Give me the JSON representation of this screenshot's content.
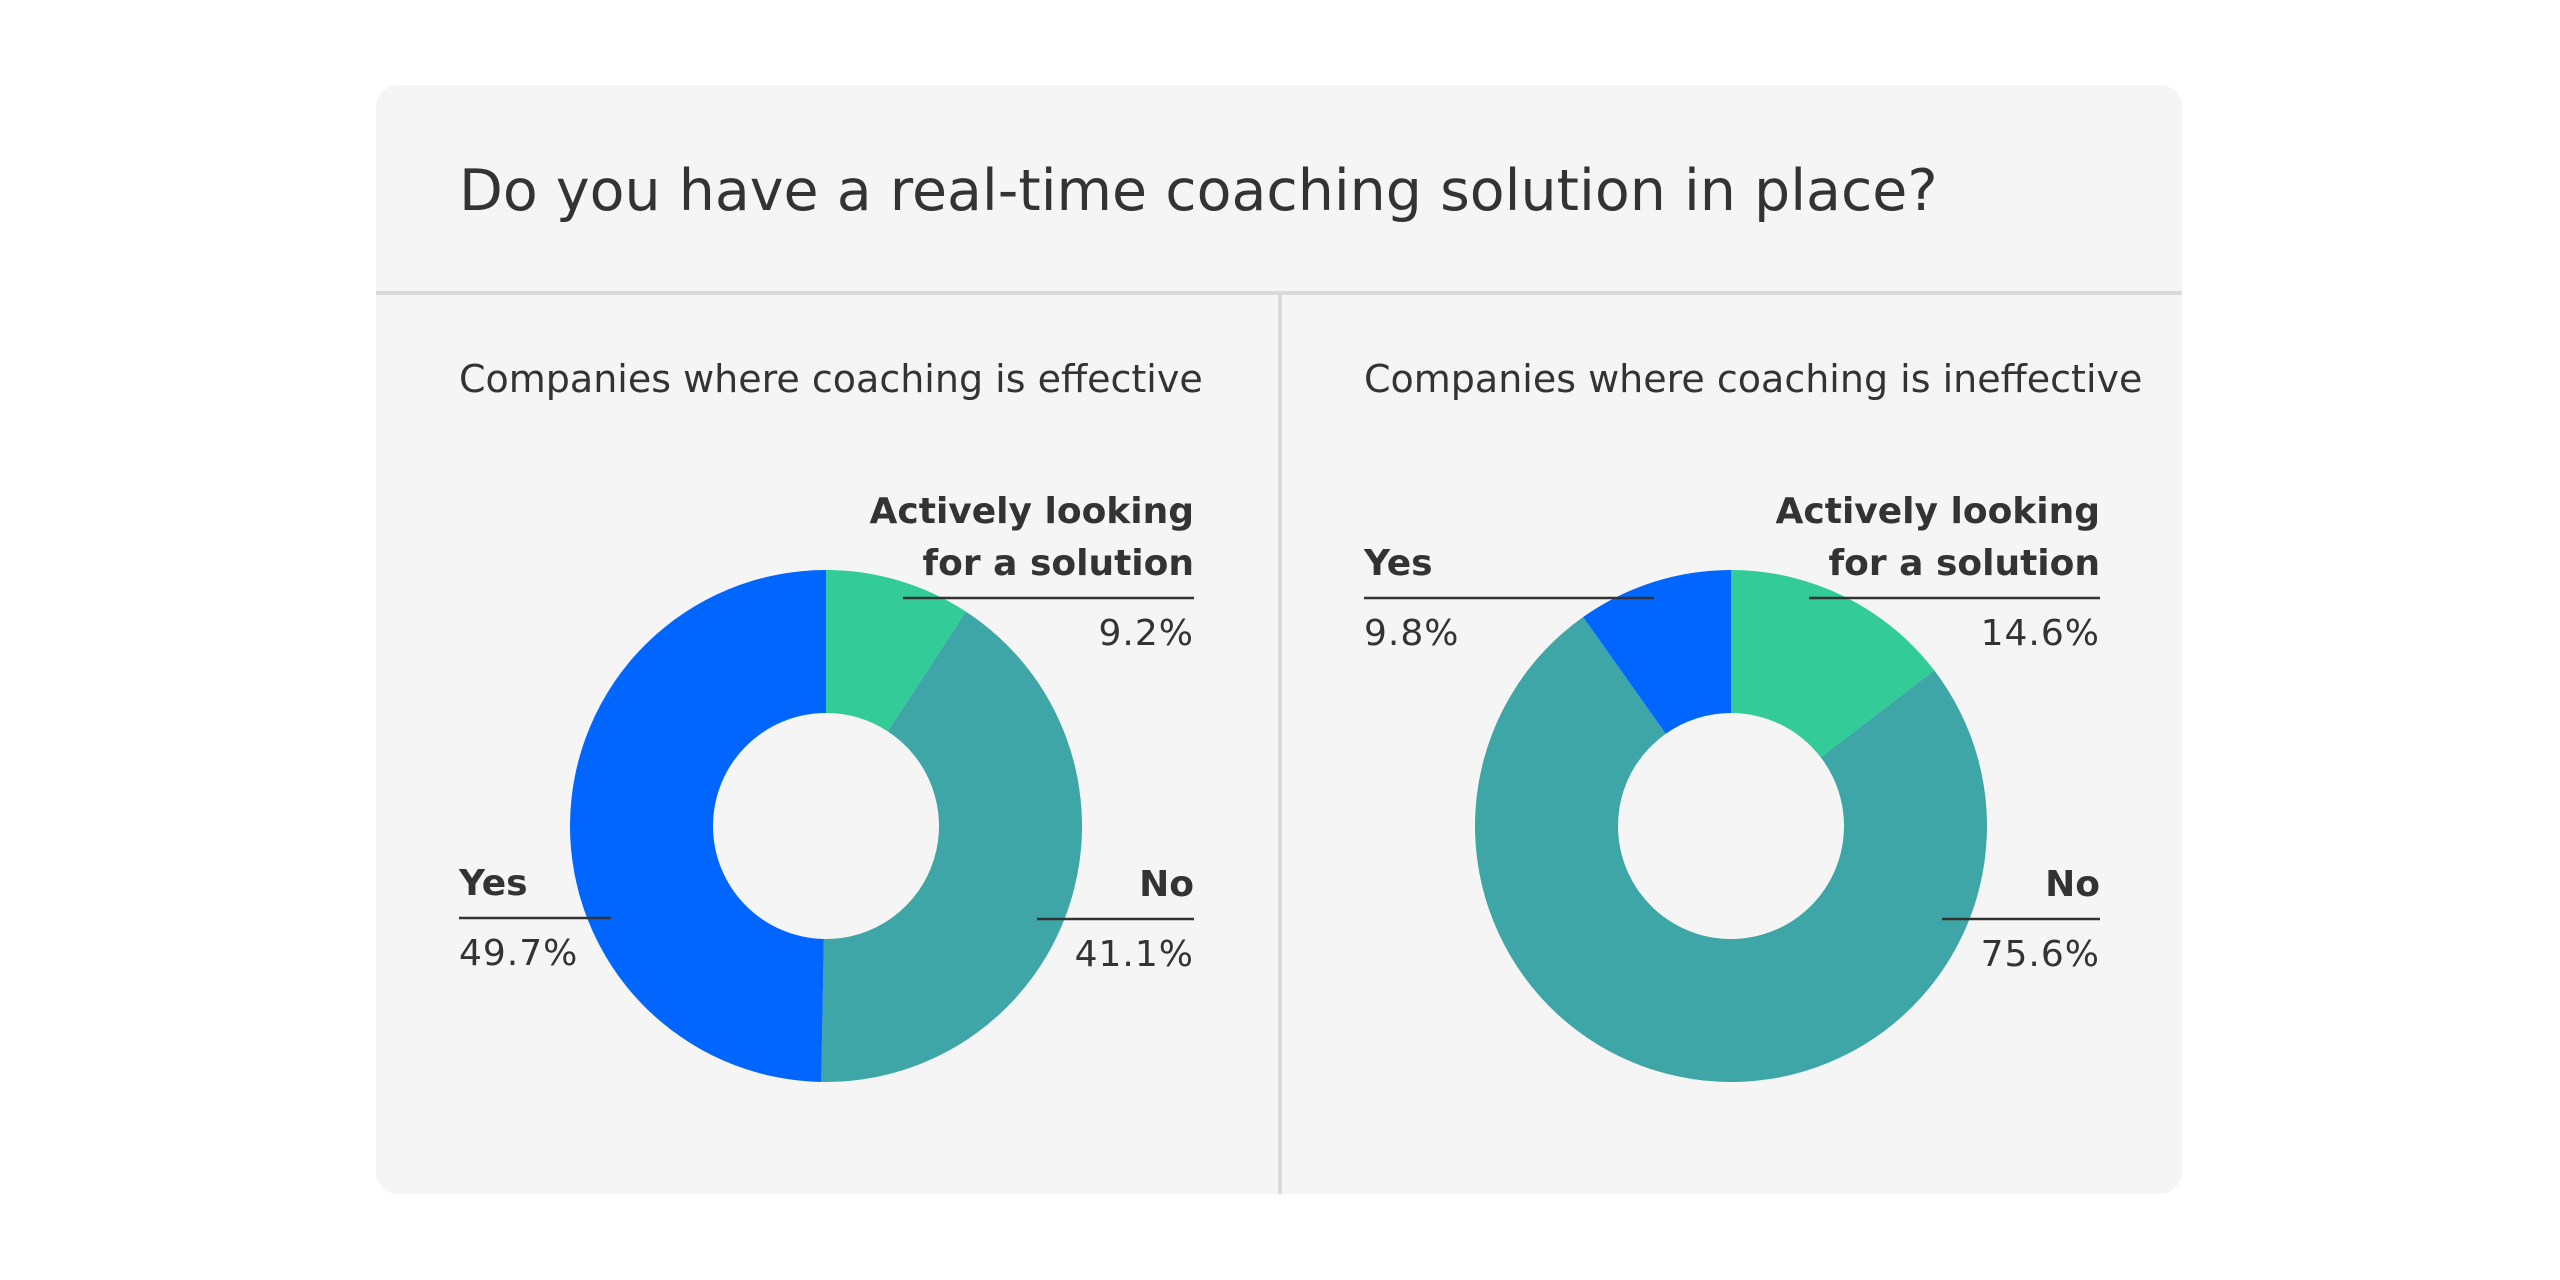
{
  "title": "Do you have a real-time coaching solution in place?",
  "chart_data": [
    {
      "type": "donut",
      "title": "Companies where coaching is effective",
      "categories": [
        "Actively looking for a solution",
        "No",
        "Yes"
      ],
      "values": [
        9.2,
        41.1,
        49.7
      ],
      "value_labels": [
        "9.2%",
        "41.1%",
        "49.7%"
      ],
      "colors": [
        "#33cc99",
        "#3ea6a6",
        "#0066ff"
      ]
    },
    {
      "type": "donut",
      "title": "Companies where coaching is ineffective",
      "categories": [
        "Actively looking for a solution",
        "No",
        "Yes"
      ],
      "values": [
        14.6,
        75.6,
        9.8
      ],
      "value_labels": [
        "14.6%",
        "75.6%",
        "9.8%"
      ],
      "colors": [
        "#33cc99",
        "#3ea6a6",
        "#0066ff"
      ]
    }
  ]
}
